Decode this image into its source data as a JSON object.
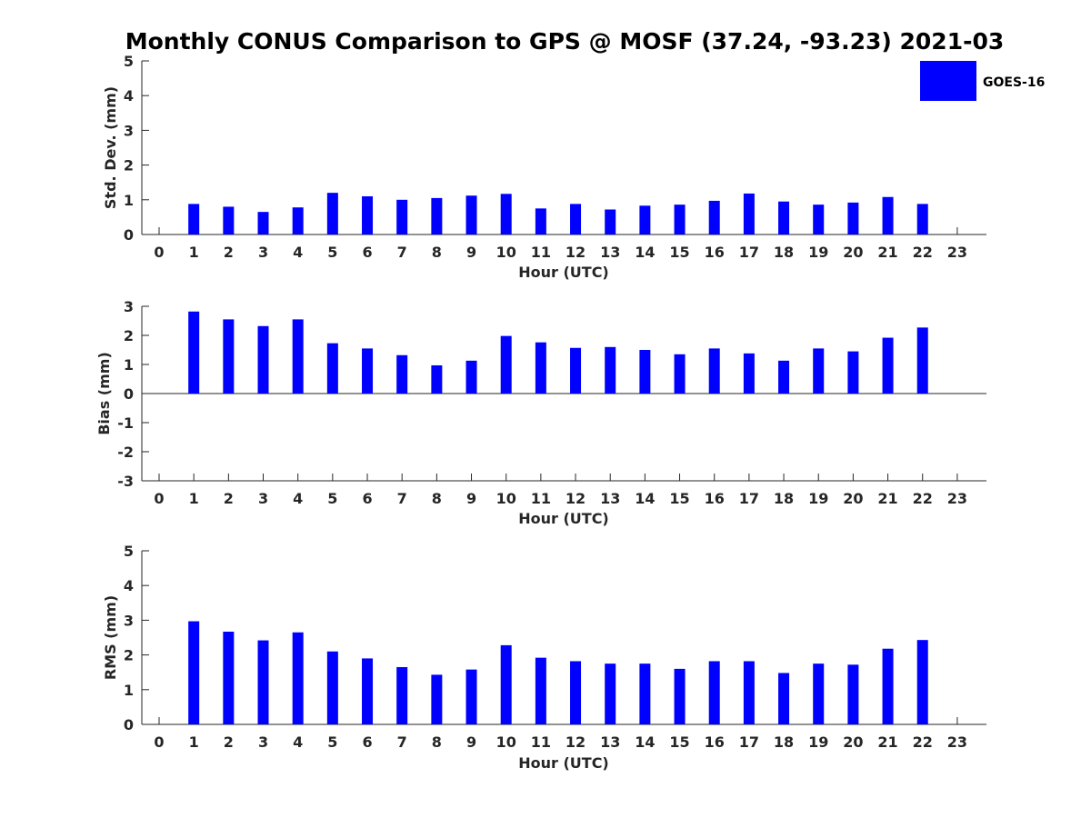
{
  "title": "Monthly CONUS Comparison to GPS @ MOSF (37.24, -93.23) 2021-03",
  "legend": {
    "label": "GOES-16",
    "color": "#0000ff"
  },
  "chart_data": [
    {
      "type": "bar",
      "series_name": "GOES-16",
      "xlabel": "Hour (UTC)",
      "ylabel": "Std. Dev. (mm)",
      "ylim": [
        0,
        5
      ],
      "yticks": [
        "0",
        "1",
        "2",
        "3",
        "4",
        "5"
      ],
      "categories": [
        "0",
        "1",
        "2",
        "3",
        "4",
        "5",
        "6",
        "7",
        "8",
        "9",
        "10",
        "11",
        "12",
        "13",
        "14",
        "15",
        "16",
        "17",
        "18",
        "19",
        "20",
        "21",
        "22",
        "23"
      ],
      "values": [
        null,
        0.88,
        0.8,
        0.65,
        0.78,
        1.2,
        1.1,
        1.0,
        1.05,
        1.12,
        1.17,
        0.75,
        0.88,
        0.72,
        0.83,
        0.86,
        0.97,
        1.18,
        0.95,
        0.86,
        0.92,
        1.08,
        0.88,
        null
      ],
      "color": "#0000ff"
    },
    {
      "type": "bar",
      "series_name": "GOES-16",
      "xlabel": "Hour (UTC)",
      "ylabel": "Bias (mm)",
      "ylim": [
        -3,
        3
      ],
      "yticks": [
        "-3",
        "-2",
        "-1",
        "0",
        "1",
        "2",
        "3"
      ],
      "categories": [
        "0",
        "1",
        "2",
        "3",
        "4",
        "5",
        "6",
        "7",
        "8",
        "9",
        "10",
        "11",
        "12",
        "13",
        "14",
        "15",
        "16",
        "17",
        "18",
        "19",
        "20",
        "21",
        "22",
        "23"
      ],
      "values": [
        null,
        2.82,
        2.55,
        2.32,
        2.55,
        1.73,
        1.55,
        1.32,
        0.97,
        1.13,
        1.98,
        1.76,
        1.57,
        1.6,
        1.5,
        1.35,
        1.55,
        1.38,
        1.13,
        1.55,
        1.45,
        1.92,
        2.27,
        null
      ],
      "color": "#0000ff"
    },
    {
      "type": "bar",
      "series_name": "GOES-16",
      "xlabel": "Hour (UTC)",
      "ylabel": "RMS (mm)",
      "ylim": [
        0,
        5
      ],
      "yticks": [
        "0",
        "1",
        "2",
        "3",
        "4",
        "5"
      ],
      "categories": [
        "0",
        "1",
        "2",
        "3",
        "4",
        "5",
        "6",
        "7",
        "8",
        "9",
        "10",
        "11",
        "12",
        "13",
        "14",
        "15",
        "16",
        "17",
        "18",
        "19",
        "20",
        "21",
        "22",
        "23"
      ],
      "values": [
        null,
        2.97,
        2.67,
        2.42,
        2.65,
        2.1,
        1.9,
        1.65,
        1.43,
        1.58,
        2.28,
        1.92,
        1.82,
        1.75,
        1.75,
        1.6,
        1.82,
        1.82,
        1.48,
        1.75,
        1.72,
        2.18,
        2.43,
        null
      ],
      "color": "#0000ff"
    }
  ]
}
